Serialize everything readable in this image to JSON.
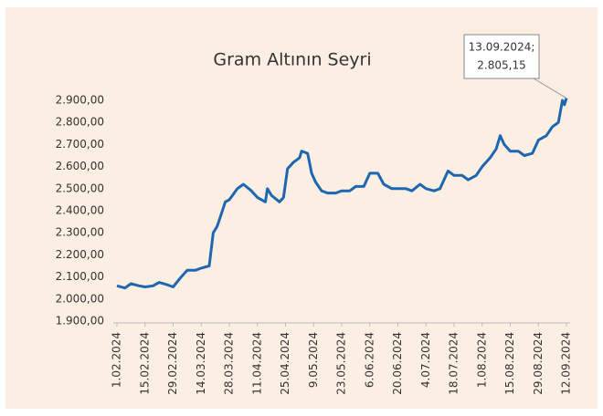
{
  "chart_data": {
    "type": "line",
    "title": "Gram Altının Seyri",
    "annotation": {
      "lines": [
        "13.09.2024;",
        "2.805,15"
      ]
    },
    "color": "#1f66b0",
    "x": [
      "1.02.2024",
      "5.02.2024",
      "8.02.2024",
      "12.02.2024",
      "15.02.2024",
      "19.02.2024",
      "22.02.2024",
      "26.02.2024",
      "29.02.2024",
      "4.03.2024",
      "7.03.2024",
      "11.03.2024",
      "14.03.2024",
      "18.03.2024",
      "20.03.2024",
      "22.03.2024",
      "26.03.2024",
      "28.03.2024",
      "1.04.2024",
      "4.04.2024",
      "8.04.2024",
      "11.04.2024",
      "15.04.2024",
      "16.04.2024",
      "18.04.2024",
      "22.04.2024",
      "24.04.2024",
      "26.04.2024",
      "29.04.2024",
      "2.05.2024",
      "3.05.2024",
      "6.05.2024",
      "8.05.2024",
      "10.05.2024",
      "13.05.2024",
      "16.05.2024",
      "20.05.2024",
      "23.05.2024",
      "27.05.2024",
      "30.05.2024",
      "3.06.2024",
      "6.06.2024",
      "10.06.2024",
      "13.06.2024",
      "17.06.2024",
      "20.06.2024",
      "24.06.2024",
      "27.06.2024",
      "1.07.2024",
      "4.07.2024",
      "8.07.2024",
      "11.07.2024",
      "15.07.2024",
      "18.07.2024",
      "22.07.2024",
      "25.07.2024",
      "29.07.2024",
      "1.08.2024",
      "5.08.2024",
      "8.08.2024",
      "10.08.2024",
      "12.08.2024",
      "15.08.2024",
      "19.08.2024",
      "22.08.2024",
      "26.08.2024",
      "29.08.2024",
      "2.09.2024",
      "5.09.2024",
      "8.09.2024",
      "10.09.2024",
      "11.09.2024",
      "12.09.2024"
    ],
    "values": [
      2060,
      2050,
      2070,
      2060,
      2055,
      2060,
      2075,
      2065,
      2055,
      2100,
      2130,
      2130,
      2140,
      2150,
      2300,
      2330,
      2440,
      2450,
      2500,
      2520,
      2490,
      2460,
      2440,
      2500,
      2470,
      2440,
      2460,
      2590,
      2620,
      2640,
      2670,
      2660,
      2570,
      2530,
      2490,
      2480,
      2480,
      2490,
      2490,
      2510,
      2510,
      2570,
      2570,
      2520,
      2500,
      2500,
      2500,
      2490,
      2520,
      2500,
      2490,
      2500,
      2580,
      2560,
      2560,
      2540,
      2560,
      2600,
      2640,
      2680,
      2740,
      2700,
      2670,
      2670,
      2650,
      2660,
      2720,
      2740,
      2780,
      2800,
      2900,
      2880,
      2910
    ],
    "xticks": [
      "1.02.2024",
      "15.02.2024",
      "29.02.2024",
      "14.03.2024",
      "28.03.2024",
      "11.04.2024",
      "25.04.2024",
      "9.05.2024",
      "23.05.2024",
      "6.06.2024",
      "20.06.2024",
      "4.07.2024",
      "18.07.2024",
      "1.08.2024",
      "15.08.2024",
      "29.08.2024",
      "12.09.2024"
    ],
    "ylim": [
      1900,
      2900
    ],
    "yticks": [
      {
        "value": 1900,
        "label": "1.900,00"
      },
      {
        "value": 2000,
        "label": "2.000,00"
      },
      {
        "value": 2100,
        "label": "2.100,00"
      },
      {
        "value": 2200,
        "label": "2.200,00"
      },
      {
        "value": 2300,
        "label": "2.300,00"
      },
      {
        "value": 2400,
        "label": "2.400,00"
      },
      {
        "value": 2500,
        "label": "2.500,00"
      },
      {
        "value": 2600,
        "label": "2.600,00"
      },
      {
        "value": 2700,
        "label": "2.700,00"
      },
      {
        "value": 2800,
        "label": "2.800,00"
      },
      {
        "value": 2900,
        "label": "2.900,00"
      }
    ]
  }
}
